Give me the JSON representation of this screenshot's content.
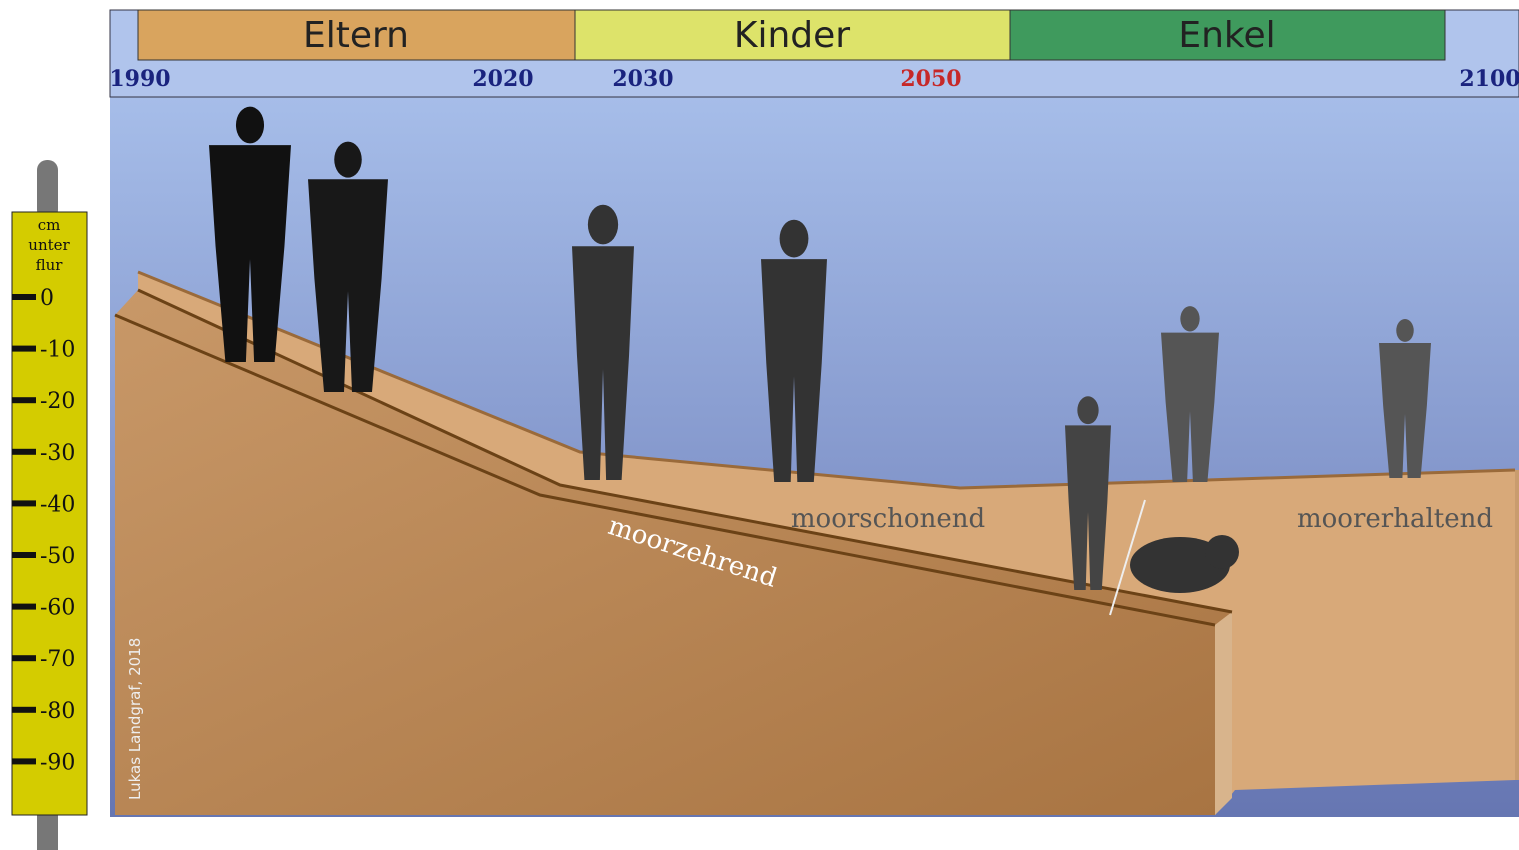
{
  "header": {
    "generations": [
      "Eltern",
      "Kinder",
      "Enkel"
    ],
    "years": [
      1990,
      2020,
      2030,
      2050,
      2100
    ]
  },
  "gauge": {
    "title_lines": [
      "cm",
      "unter",
      "flur"
    ],
    "ticks": [
      0,
      -10,
      -20,
      -30,
      -40,
      -50,
      -60,
      -70,
      -80,
      -90
    ]
  },
  "regions": [
    "moorzehrend",
    "moorschonend",
    "moorerhaltend"
  ],
  "credit": "Lukas Landgraf, 2018"
}
